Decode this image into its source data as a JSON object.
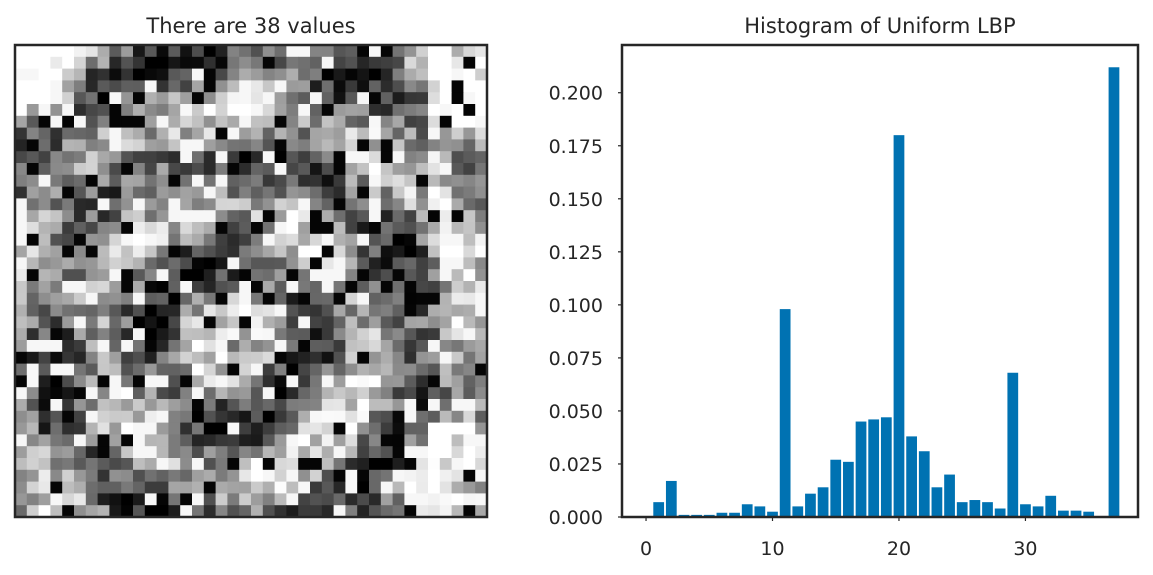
{
  "chart_data": [
    {
      "type": "heatmap",
      "title": "There are 38 values",
      "xlabel": "",
      "ylabel": "",
      "grid": false,
      "colormap": "gray",
      "axes_ticks_visible": false,
      "rows": 40,
      "cols": 40
    },
    {
      "type": "bar",
      "title": "Histogram of Uniform LBP",
      "xlabel": "",
      "ylabel": "",
      "grid": false,
      "bar_color": "#0072b2",
      "xlim": [
        -1.9,
        38.9
      ],
      "ylim": [
        0,
        0.2225
      ],
      "xticks": [
        0,
        10,
        20,
        30
      ],
      "yticks": [
        0.0,
        0.025,
        0.05,
        0.075,
        0.1,
        0.125,
        0.15,
        0.175,
        0.2
      ],
      "x": [
        0,
        1,
        2,
        3,
        4,
        5,
        6,
        7,
        8,
        9,
        10,
        11,
        12,
        13,
        14,
        15,
        16,
        17,
        18,
        19,
        20,
        21,
        22,
        23,
        24,
        25,
        26,
        27,
        28,
        29,
        30,
        31,
        32,
        33,
        34,
        35,
        36,
        37
      ],
      "values": [
        0.0,
        0.007,
        0.017,
        0.001,
        0.001,
        0.001,
        0.002,
        0.002,
        0.006,
        0.005,
        0.0025,
        0.098,
        0.005,
        0.011,
        0.014,
        0.027,
        0.026,
        0.045,
        0.046,
        0.047,
        0.18,
        0.038,
        0.031,
        0.014,
        0.02,
        0.007,
        0.008,
        0.007,
        0.004,
        0.068,
        0.006,
        0.005,
        0.01,
        0.003,
        0.003,
        0.0025,
        0.0,
        0.212
      ]
    }
  ]
}
